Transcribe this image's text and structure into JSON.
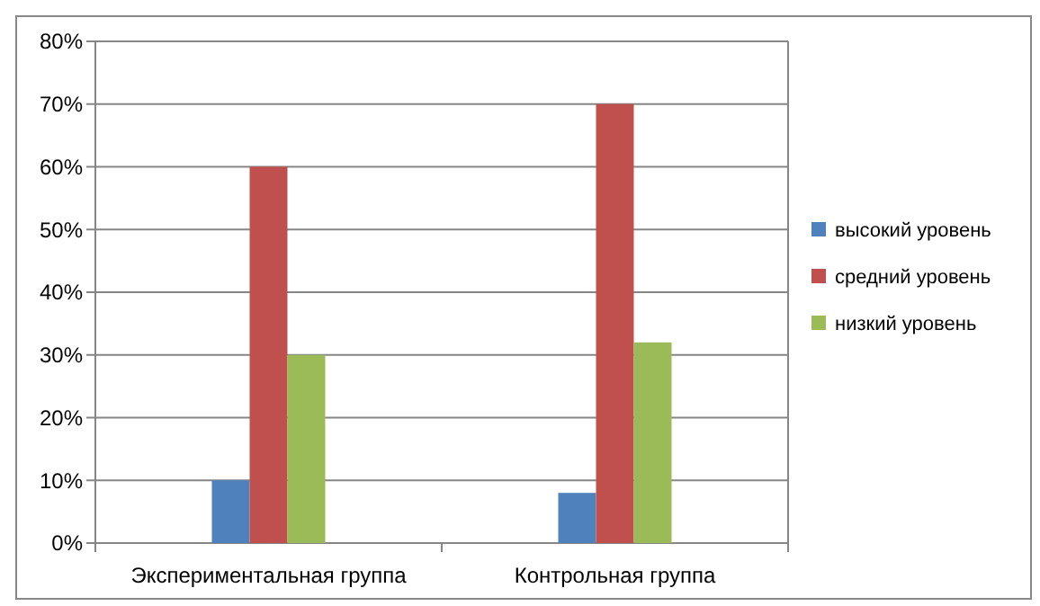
{
  "chart_data": {
    "type": "bar",
    "categories": [
      "Экспериментальная группа",
      "Контрольная группа"
    ],
    "series": [
      {
        "name": "высокий уровень",
        "color": "#4f81bd",
        "values": [
          10,
          8
        ]
      },
      {
        "name": "средний уровень",
        "color": "#c0504d",
        "values": [
          60,
          70
        ]
      },
      {
        "name": "низкий уровень",
        "color": "#9bbb59",
        "values": [
          30,
          32
        ]
      }
    ],
    "ylim": [
      0,
      80
    ],
    "yticks": [
      {
        "value": 0,
        "label": "0%"
      },
      {
        "value": 10,
        "label": "10%"
      },
      {
        "value": 20,
        "label": "20%"
      },
      {
        "value": 30,
        "label": "30%"
      },
      {
        "value": 40,
        "label": "40%"
      },
      {
        "value": 50,
        "label": "50%"
      },
      {
        "value": 60,
        "label": "60%"
      },
      {
        "value": 70,
        "label": "70%"
      },
      {
        "value": 80,
        "label": "80%"
      }
    ],
    "grid": "y",
    "legend": "right"
  }
}
